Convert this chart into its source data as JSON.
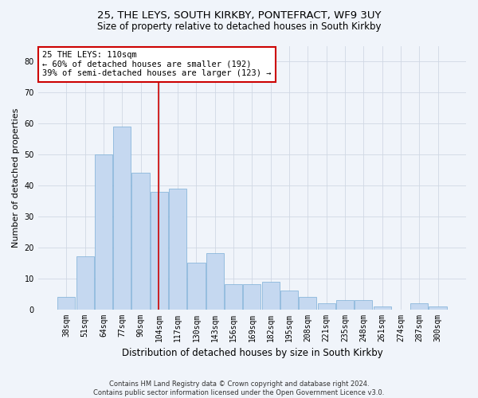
{
  "title_line1": "25, THE LEYS, SOUTH KIRKBY, PONTEFRACT, WF9 3UY",
  "title_line2": "Size of property relative to detached houses in South Kirkby",
  "xlabel": "Distribution of detached houses by size in South Kirkby",
  "ylabel": "Number of detached properties",
  "categories": [
    "38sqm",
    "51sqm",
    "64sqm",
    "77sqm",
    "90sqm",
    "104sqm",
    "117sqm",
    "130sqm",
    "143sqm",
    "156sqm",
    "169sqm",
    "182sqm",
    "195sqm",
    "208sqm",
    "221sqm",
    "235sqm",
    "248sqm",
    "261sqm",
    "274sqm",
    "287sqm",
    "300sqm"
  ],
  "values": [
    4,
    17,
    50,
    59,
    44,
    38,
    39,
    15,
    18,
    8,
    8,
    9,
    6,
    4,
    2,
    3,
    3,
    1,
    0,
    2,
    1
  ],
  "bar_color": "#c5d8f0",
  "bar_edge_color": "#7aaed6",
  "grid_color": "#d0d8e4",
  "background_color": "#f0f4fa",
  "annotation_text_line1": "25 THE LEYS: 110sqm",
  "annotation_text_line2": "← 60% of detached houses are smaller (192)",
  "annotation_text_line3": "39% of semi-detached houses are larger (123) →",
  "annotation_box_color": "#ffffff",
  "annotation_border_color": "#cc0000",
  "red_line_color": "#cc0000",
  "footer_line1": "Contains HM Land Registry data © Crown copyright and database right 2024.",
  "footer_line2": "Contains public sector information licensed under the Open Government Licence v3.0.",
  "ylim": [
    0,
    85
  ],
  "yticks": [
    0,
    10,
    20,
    30,
    40,
    50,
    60,
    70,
    80
  ],
  "title1_fontsize": 9.5,
  "title2_fontsize": 8.5,
  "ylabel_fontsize": 8,
  "xlabel_fontsize": 8.5,
  "tick_fontsize": 7,
  "annot_fontsize": 7.5,
  "footer_fontsize": 6
}
